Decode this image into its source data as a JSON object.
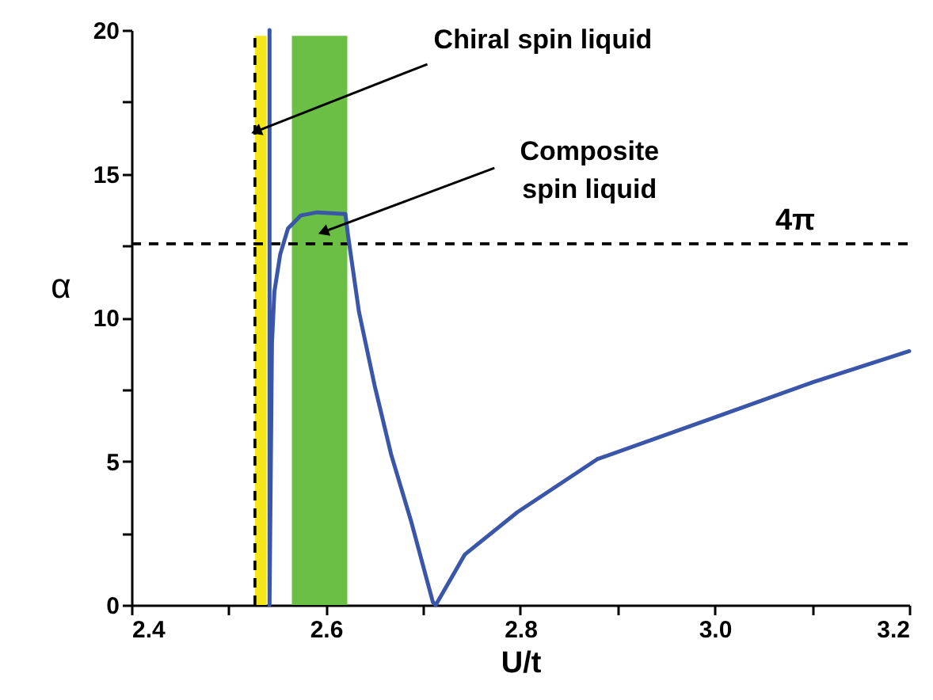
{
  "chart_data": {
    "type": "line",
    "xlabel": "U/t",
    "ylabel": "α",
    "xlim": [
      2.4,
      3.2
    ],
    "ylim": [
      0,
      20
    ],
    "xticks": [
      2.4,
      {
        "value": 2.5,
        "label": null
      },
      2.6,
      {
        "value": 2.7,
        "label": null
      },
      2.8,
      {
        "value": 2.9,
        "label": null
      },
      {
        "value": 3,
        "label": "3.0"
      },
      {
        "value": 3.1,
        "label": null
      },
      3.2
    ],
    "yticks": [
      0,
      {
        "value": 2.5,
        "label": null
      },
      5,
      {
        "value": 7.5,
        "label": null
      },
      10,
      {
        "value": 12.5,
        "label": null
      },
      15,
      {
        "value": 17.5,
        "label": null
      },
      20
    ],
    "series": [
      {
        "color": "#3a56a8",
        "x": [
          2.542,
          2.542,
          2.5445,
          2.547,
          2.553,
          2.561,
          2.574,
          2.591,
          2.62,
          2.623,
          2.634,
          2.65,
          2.667,
          2.688,
          2.71,
          2.713,
          2.743,
          2.797,
          2.879,
          3.001,
          3.101,
          3.2
        ],
        "values": [
          20,
          0,
          9.1,
          10.9,
          12.2,
          13.1,
          13.55,
          13.66,
          13.6,
          12.8,
          10.2,
          7.65,
          5.25,
          2.87,
          0.1,
          0,
          1.76,
          3.23,
          5.07,
          6.54,
          7.75,
          8.83
        ]
      }
    ],
    "bands": [
      {
        "axis": "x",
        "from": 2.527,
        "to": 2.539,
        "color": "#f5e61a"
      },
      {
        "axis": "x",
        "from": 2.565,
        "to": 2.622,
        "color": "#6cbf45"
      }
    ],
    "ref_lines": [
      {
        "axis": "x",
        "value": 2.527,
        "color": "#000000",
        "line_style": "dashed"
      },
      {
        "axis": "y",
        "value": 12.566,
        "label": "4π",
        "color": "#000000",
        "line_style": "dashed"
      }
    ],
    "annotations": [
      {
        "text": "Chiral spin liquid",
        "x": 2.53,
        "y": 16.5
      },
      {
        "text": "Composite spin liquid",
        "x": 2.599,
        "y": 13
      }
    ]
  }
}
